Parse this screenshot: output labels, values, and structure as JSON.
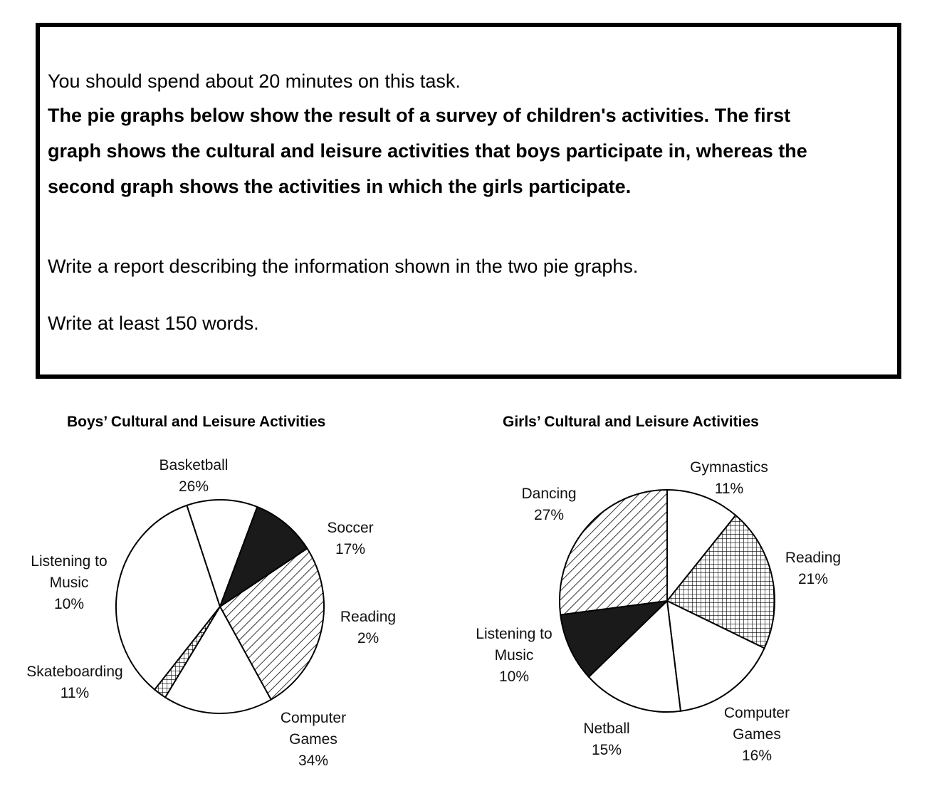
{
  "task": {
    "time_note": "You should spend about 20 minutes on this task.",
    "prompt": "The pie graphs below show the result of a survey of children's activities. The first graph shows the cultural and leisure activities that boys participate in, whereas the second graph shows the activities in which the girls participate.",
    "instruction": "Write a report describing the information shown in the two pie graphs.",
    "word_limit": "Write at least 150 words."
  },
  "chart_data": [
    {
      "type": "pie",
      "title": "Boys’ Cultural and Leisure Activities",
      "slices": [
        {
          "label_lines": [
            "Basketball"
          ],
          "value_text": "26%",
          "value": 26,
          "fill": "hatch"
        },
        {
          "label_lines": [
            "Soccer"
          ],
          "value_text": "17%",
          "value": 17,
          "fill": "white"
        },
        {
          "label_lines": [
            "Reading"
          ],
          "value_text": "2%",
          "value": 2,
          "fill": "crosshatch"
        },
        {
          "label_lines": [
            "Computer",
            "Games"
          ],
          "value_text": "34%",
          "value": 34,
          "fill": "white"
        },
        {
          "label_lines": [
            "Skateboarding"
          ],
          "value_text": "11%",
          "value": 11,
          "fill": "white"
        },
        {
          "label_lines": [
            "Listening to",
            "Music"
          ],
          "value_text": "10%",
          "value": 10,
          "fill": "black"
        }
      ]
    },
    {
      "type": "pie",
      "title": "Girls’ Cultural and Leisure Activities",
      "slices": [
        {
          "label_lines": [
            "Gymnastics"
          ],
          "value_text": "11%",
          "value": 11,
          "fill": "white"
        },
        {
          "label_lines": [
            "Reading"
          ],
          "value_text": "21%",
          "value": 21,
          "fill": "crosshatch"
        },
        {
          "label_lines": [
            "Computer",
            "Games"
          ],
          "value_text": "16%",
          "value": 16,
          "fill": "white"
        },
        {
          "label_lines": [
            "Netball"
          ],
          "value_text": "15%",
          "value": 15,
          "fill": "white"
        },
        {
          "label_lines": [
            "Listening to",
            "Music"
          ],
          "value_text": "10%",
          "value": 10,
          "fill": "black"
        },
        {
          "label_lines": [
            "Dancing"
          ],
          "value_text": "27%",
          "value": 27,
          "fill": "hatch"
        }
      ]
    }
  ]
}
